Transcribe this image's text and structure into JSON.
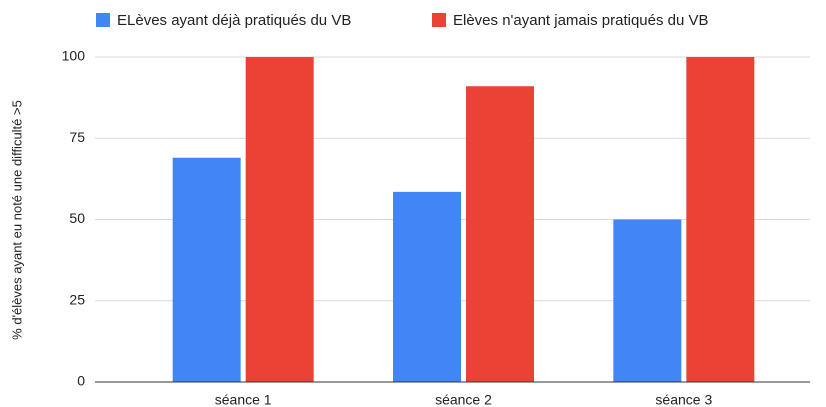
{
  "chart_data": {
    "type": "bar",
    "y_label": "% d'élèves ayant eu noté une difficulté >5",
    "categories": [
      "séance 1",
      "séance 2",
      "séance 3"
    ],
    "series": [
      {
        "name": "ELèves ayant déjà pratiqués du VB",
        "color": "#4285f4",
        "values": [
          69,
          58.5,
          50
        ]
      },
      {
        "name": "Elèves n'ayant jamais pratiqués du VB",
        "color": "#ea4335",
        "values": [
          100,
          91,
          100
        ]
      }
    ],
    "ylim": [
      0,
      100
    ],
    "yticks": [
      0,
      25,
      50,
      75,
      100
    ],
    "grid": true,
    "legend": "top"
  }
}
